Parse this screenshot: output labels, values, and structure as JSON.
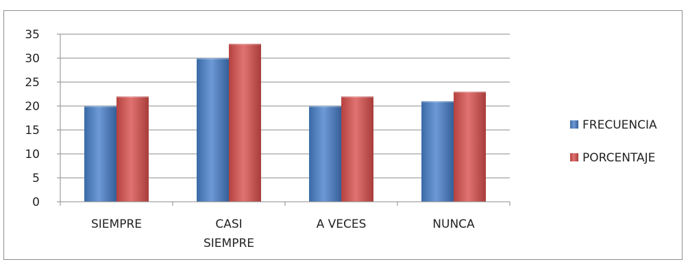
{
  "chart_data": {
    "type": "bar",
    "categories": [
      [
        "SIEMPRE"
      ],
      [
        "CASI",
        "SIEMPRE"
      ],
      [
        "A VECES"
      ],
      [
        "NUNCA"
      ]
    ],
    "series": [
      {
        "name": "FRECUENCIA",
        "values": [
          20,
          30,
          20,
          21
        ],
        "color": "#4f81bd"
      },
      {
        "name": "PORCENTAJE",
        "values": [
          22,
          33,
          22,
          23
        ],
        "color": "#c0504d"
      }
    ],
    "ylim": [
      0,
      35
    ],
    "yticks": [
      "0",
      "5",
      "10",
      "15",
      "20",
      "25",
      "30",
      "35"
    ],
    "grid": true,
    "legend_position": "right"
  }
}
